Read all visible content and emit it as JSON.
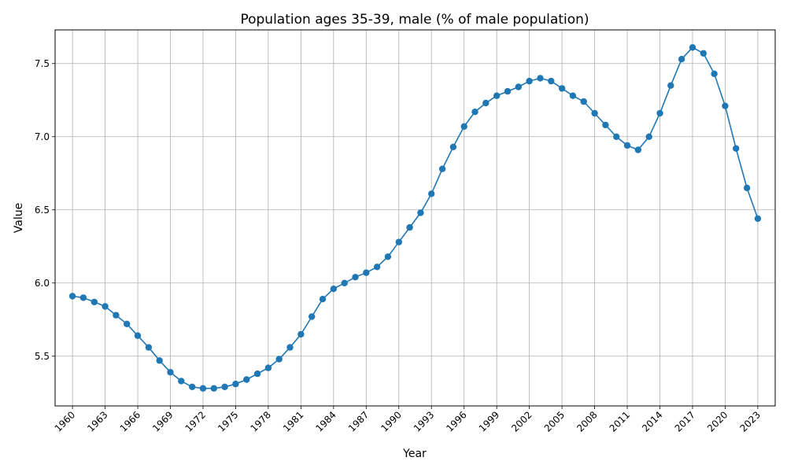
{
  "chart_data": {
    "type": "line",
    "title": "Population ages 35-39, male (% of male population)",
    "xlabel": "Year",
    "ylabel": "Value",
    "grid": true,
    "x": [
      1960,
      1961,
      1962,
      1963,
      1964,
      1965,
      1966,
      1967,
      1968,
      1969,
      1970,
      1971,
      1972,
      1973,
      1974,
      1975,
      1976,
      1977,
      1978,
      1979,
      1980,
      1981,
      1982,
      1983,
      1984,
      1985,
      1986,
      1987,
      1988,
      1989,
      1990,
      1991,
      1992,
      1993,
      1994,
      1995,
      1996,
      1997,
      1998,
      1999,
      2000,
      2001,
      2002,
      2003,
      2004,
      2005,
      2006,
      2007,
      2008,
      2009,
      2010,
      2011,
      2012,
      2013,
      2014,
      2015,
      2016,
      2017,
      2018,
      2019,
      2020,
      2021,
      2022,
      2023
    ],
    "series": [
      {
        "color": "#1f77b4",
        "values": [
          5.91,
          5.9,
          5.87,
          5.84,
          5.78,
          5.72,
          5.64,
          5.56,
          5.47,
          5.39,
          5.33,
          5.29,
          5.28,
          5.28,
          5.29,
          5.31,
          5.34,
          5.38,
          5.42,
          5.48,
          5.56,
          5.65,
          5.77,
          5.89,
          5.96,
          6.0,
          6.04,
          6.07,
          6.11,
          6.18,
          6.28,
          6.38,
          6.48,
          6.61,
          6.78,
          6.93,
          7.07,
          7.17,
          7.23,
          7.28,
          7.31,
          7.34,
          7.38,
          7.4,
          7.38,
          7.33,
          7.28,
          7.24,
          7.16,
          7.08,
          7.0,
          6.94,
          6.91,
          7.0,
          7.16,
          7.35,
          7.53,
          7.61,
          7.57,
          7.43,
          7.21,
          6.92,
          6.65,
          6.44
        ]
      }
    ],
    "xticks": [
      "1960",
      "1963",
      "1966",
      "1969",
      "1972",
      "1975",
      "1978",
      "1981",
      "1984",
      "1987",
      "1990",
      "1993",
      "1996",
      "1999",
      "2002",
      "2005",
      "2008",
      "2011",
      "2014",
      "2017",
      "2020",
      "2023"
    ],
    "yticks": [
      "5.5",
      "6.0",
      "6.5",
      "7.0",
      "7.5"
    ],
    "xlim": [
      1958.4,
      2024.6
    ],
    "ylim": [
      5.16,
      7.73
    ]
  }
}
